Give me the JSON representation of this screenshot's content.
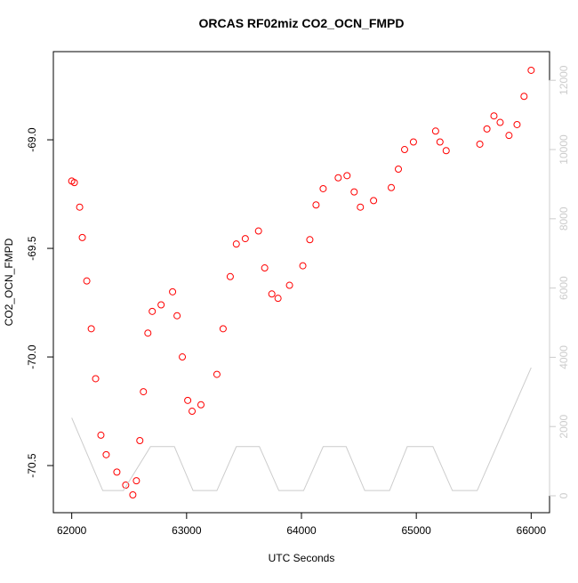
{
  "chart_data": {
    "type": "scatter",
    "title": "ORCAS RF02miz CO2_OCN_FMPD",
    "xlabel": "UTC Seconds",
    "ylabel": "CO2_OCN_FMPD",
    "xlim": [
      61840,
      66160
    ],
    "xticks": [
      62000,
      63000,
      64000,
      65000,
      66000
    ],
    "ylim": [
      -70.717,
      -68.594
    ],
    "yticks": [
      -70.5,
      {
        "value": -70,
        "label": "-70.0"
      },
      -69.5,
      {
        "value": -69,
        "label": "-69.0"
      }
    ],
    "y2lim": [
      -488,
      12828
    ],
    "y2ticks": [
      0,
      2000,
      4000,
      6000,
      8000,
      10000,
      12000
    ],
    "series": [
      {
        "color": "#ff0000",
        "x": [
          62000,
          62023,
          62069,
          62092,
          62131,
          62170,
          62208,
          62254,
          62300,
          62393,
          62470,
          62532,
          62563,
          62593,
          62624,
          62663,
          62701,
          62778,
          62878,
          62917,
          62963,
          63010,
          63048,
          63125,
          63264,
          63318,
          63380,
          63433,
          63511,
          63626,
          63680,
          63742,
          63796,
          63896,
          64012,
          64073,
          64127,
          64189,
          64320,
          64397,
          64459,
          64513,
          64628,
          64782,
          64844,
          64898,
          64975,
          65168,
          65206,
          65260,
          65553,
          65615,
          65676,
          65730,
          65807,
          65877,
          65938,
          66000
        ],
        "values": [
          -69.19,
          -69.197,
          -69.31,
          -69.45,
          -69.65,
          -69.87,
          -70.1,
          -70.36,
          -70.45,
          -70.53,
          -70.59,
          -70.635,
          -70.57,
          -70.385,
          -70.16,
          -69.89,
          -69.79,
          -69.76,
          -69.7,
          -69.81,
          -70,
          -70.2,
          -70.25,
          -70.22,
          -70.08,
          -69.87,
          -69.63,
          -69.48,
          -69.455,
          -69.42,
          -69.59,
          -69.71,
          -69.73,
          -69.67,
          -69.58,
          -69.46,
          -69.3,
          -69.225,
          -69.175,
          -69.165,
          -69.24,
          -69.31,
          -69.28,
          -69.22,
          -69.135,
          -69.045,
          -69.01,
          -68.96,
          -69.01,
          -69.05,
          -69.02,
          -68.95,
          -68.89,
          -68.92,
          -68.98,
          -68.93,
          -68.8,
          -68.68
        ]
      },
      {
        "color": "#cccccc",
        "axis": "y2",
        "x": [
          62000,
          62270,
          62450,
          62686,
          62894,
          63056,
          63264,
          63433,
          63634,
          63803,
          64019,
          64189,
          64389,
          64551,
          64767,
          64921,
          65145,
          65314,
          65530,
          66000
        ],
        "values": [
          2250,
          150,
          150,
          1420,
          1420,
          150,
          150,
          1420,
          1420,
          150,
          150,
          1420,
          1420,
          150,
          150,
          1420,
          1420,
          150,
          150,
          3700
        ]
      }
    ]
  }
}
